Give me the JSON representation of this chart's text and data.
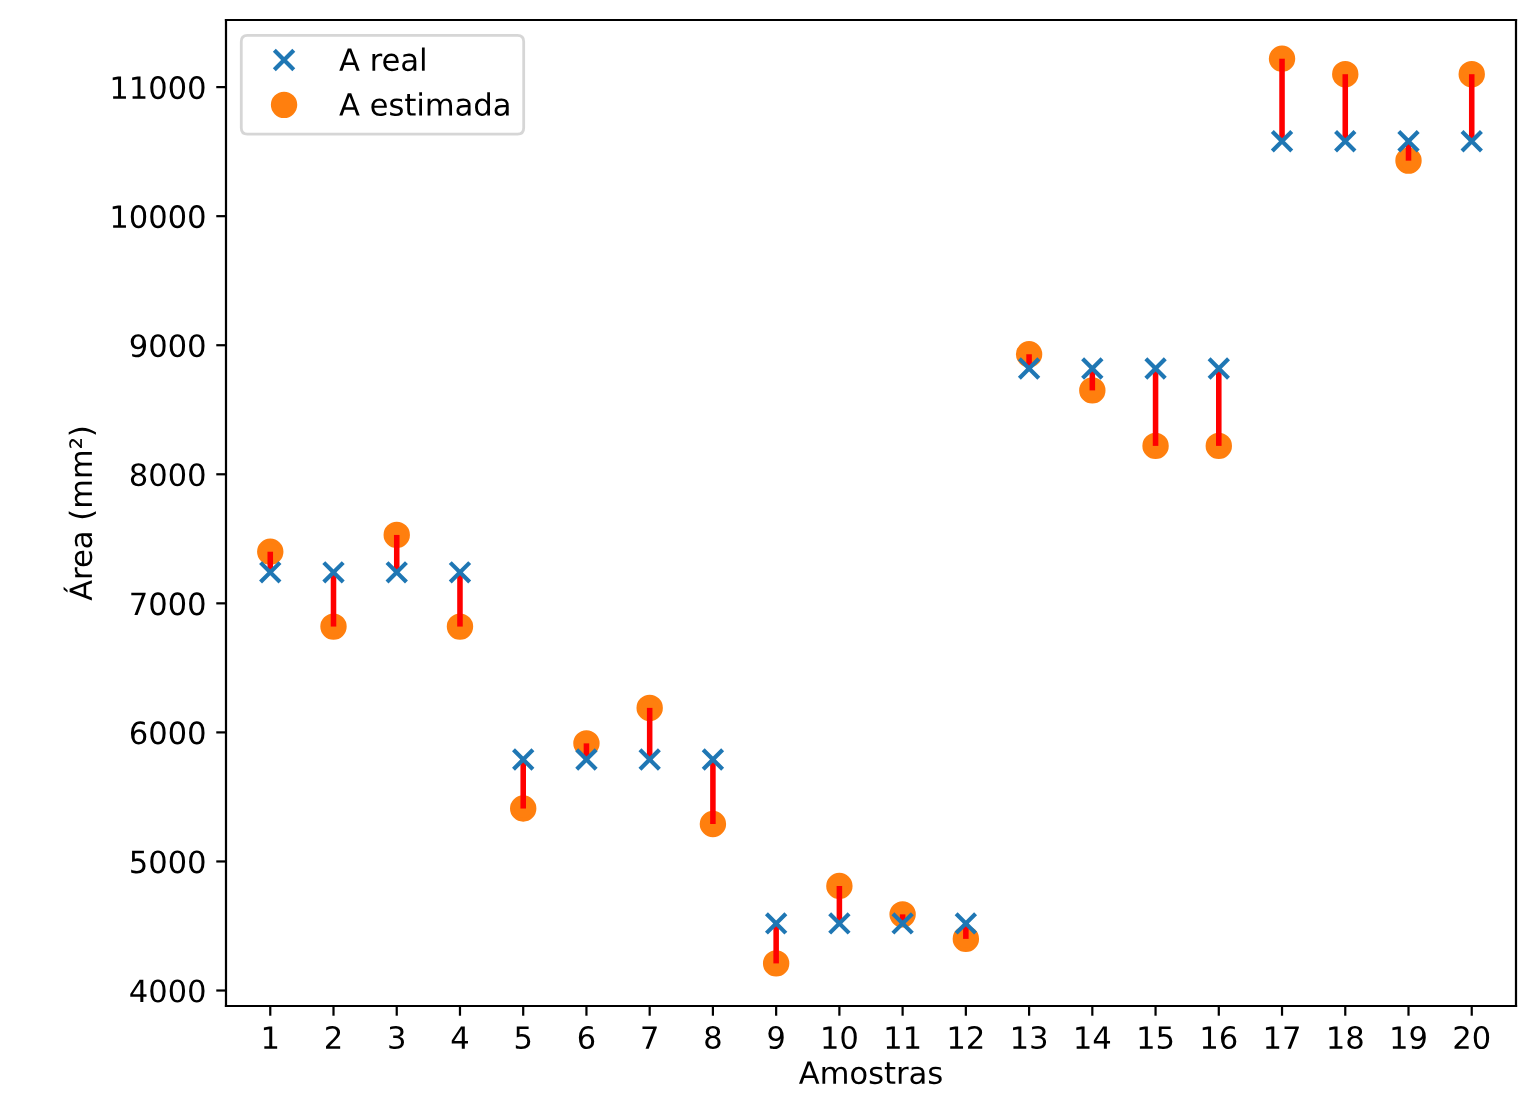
{
  "chart_data": {
    "type": "scatter",
    "xlabel": "Amostras",
    "ylabel": "Área (mm²)",
    "categories": [
      "1",
      "2",
      "3",
      "4",
      "5",
      "6",
      "7",
      "8",
      "9",
      "10",
      "11",
      "12",
      "13",
      "14",
      "15",
      "16",
      "17",
      "18",
      "19",
      "20"
    ],
    "series": [
      {
        "name": "A real",
        "color": "#1f77b4",
        "marker": "cross",
        "values": [
          7240,
          7240,
          7240,
          7240,
          5790,
          5790,
          5790,
          5790,
          4520,
          4520,
          4520,
          4520,
          8820,
          8820,
          8820,
          8820,
          10580,
          10580,
          10580,
          10580
        ]
      },
      {
        "name": "A estimada",
        "color": "#ff7f0e",
        "marker": "circle",
        "values": [
          7400,
          6820,
          7530,
          6820,
          5410,
          5915,
          6190,
          5290,
          4210,
          4810,
          4590,
          4400,
          8930,
          8650,
          8220,
          8220,
          11220,
          11100,
          10430,
          11100
        ]
      }
    ],
    "ylim": [
      3880,
      11520
    ],
    "yticks": [
      4000,
      5000,
      6000,
      7000,
      8000,
      9000,
      10000,
      11000
    ],
    "grid": false,
    "legend": "top left"
  }
}
